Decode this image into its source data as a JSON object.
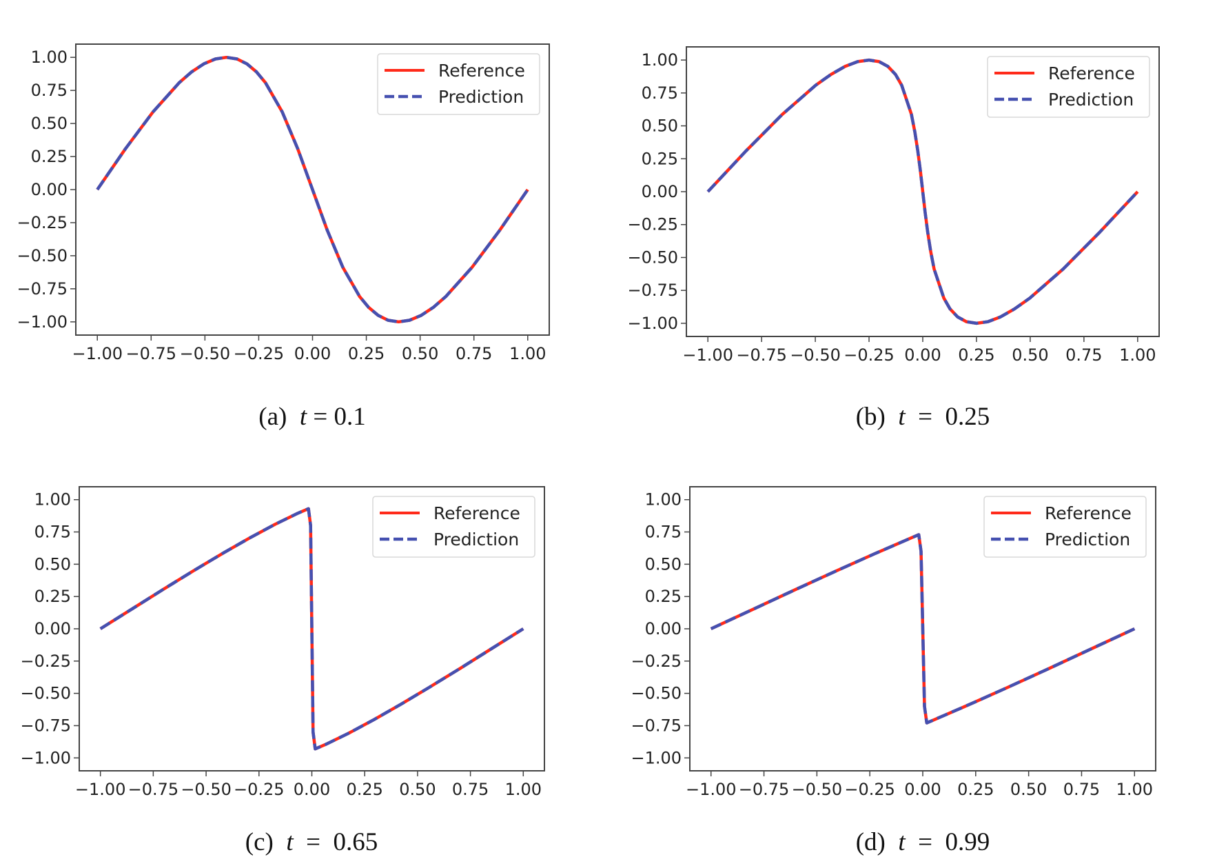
{
  "legend": {
    "reference_label": "Reference",
    "prediction_label": "Prediction",
    "position": "upper right"
  },
  "colors": {
    "reference": "#ff2a1a",
    "prediction": "#4550b0",
    "axes": "#444444"
  },
  "chart_data": [
    {
      "type": "line",
      "panel": "(a)",
      "caption_var": "t",
      "caption_value": "0.1",
      "xlim": [
        -1.1,
        1.1
      ],
      "ylim": [
        -1.1,
        1.1
      ],
      "grid": false,
      "legend": "top-right",
      "xticks": [
        "−1.00",
        "−0.75",
        "−0.50",
        "−0.25",
        "0.00",
        "0.25",
        "0.50",
        "0.75",
        "1.00"
      ],
      "yticks": [
        "−1.00",
        "−0.75",
        "−0.50",
        "−0.25",
        "0.00",
        "0.25",
        "0.50",
        "0.75",
        "1.00"
      ],
      "x": [
        -1,
        -0.869,
        -0.741,
        -0.619,
        -0.561,
        -0.505,
        -0.451,
        -0.4,
        -0.351,
        -0.305,
        -0.261,
        -0.219,
        -0.141,
        -0.069,
        0,
        0.069,
        0.141,
        0.219,
        0.261,
        0.305,
        0.351,
        0.4,
        0.451,
        0.505,
        0.561,
        0.619,
        0.741,
        0.869,
        1
      ],
      "series": [
        {
          "name": "Reference",
          "y": [
            0,
            0.309,
            0.588,
            0.809,
            0.891,
            0.951,
            0.988,
            1,
            0.988,
            0.951,
            0.891,
            0.809,
            0.588,
            0.309,
            0,
            -0.309,
            -0.588,
            -0.809,
            -0.891,
            -0.951,
            -0.988,
            -1,
            -0.988,
            -0.951,
            -0.891,
            -0.809,
            -0.588,
            -0.309,
            0
          ]
        },
        {
          "name": "Prediction",
          "y": [
            0,
            0.309,
            0.588,
            0.809,
            0.891,
            0.951,
            0.988,
            1,
            0.988,
            0.951,
            0.891,
            0.809,
            0.588,
            0.309,
            0,
            -0.309,
            -0.588,
            -0.809,
            -0.891,
            -0.951,
            -0.988,
            -1,
            -0.988,
            -0.951,
            -0.891,
            -0.809,
            -0.588,
            -0.309,
            0
          ]
        }
      ]
    },
    {
      "type": "line",
      "panel": "(b)",
      "caption_var": "t",
      "caption_value": "0.25",
      "xlim": [
        -1.1,
        1.1
      ],
      "ylim": [
        -1.1,
        1.1
      ],
      "grid": false,
      "legend": "top-right",
      "xticks": [
        "−1.00",
        "−0.75",
        "−0.50",
        "−0.25",
        "0.00",
        "0.25",
        "0.50",
        "0.75",
        "1.00"
      ],
      "yticks": [
        "−1.00",
        "−0.75",
        "−0.50",
        "−0.25",
        "0.00",
        "0.25",
        "0.50",
        "0.75",
        "1.00"
      ],
      "x": [
        -1,
        -0.823,
        -0.653,
        -0.498,
        -0.427,
        -0.362,
        -0.303,
        -0.25,
        -0.203,
        -0.162,
        -0.127,
        -0.098,
        -0.053,
        -0.037,
        -0.023,
        -0.011,
        0,
        0.011,
        0.023,
        0.037,
        0.053,
        0.098,
        0.127,
        0.162,
        0.203,
        0.25,
        0.303,
        0.362,
        0.427,
        0.498,
        0.653,
        0.823,
        1
      ],
      "series": [
        {
          "name": "Reference",
          "y": [
            0,
            0.309,
            0.588,
            0.809,
            0.891,
            0.951,
            0.988,
            1,
            0.988,
            0.951,
            0.891,
            0.809,
            0.588,
            0.454,
            0.309,
            0.156,
            0,
            -0.156,
            -0.309,
            -0.454,
            -0.588,
            -0.809,
            -0.891,
            -0.951,
            -0.988,
            -1,
            -0.988,
            -0.951,
            -0.891,
            -0.809,
            -0.588,
            -0.309,
            0
          ]
        },
        {
          "name": "Prediction",
          "y": [
            0,
            0.309,
            0.588,
            0.809,
            0.891,
            0.951,
            0.988,
            1,
            0.988,
            0.951,
            0.891,
            0.809,
            0.588,
            0.454,
            0.309,
            0.156,
            0,
            -0.156,
            -0.309,
            -0.454,
            -0.588,
            -0.809,
            -0.891,
            -0.951,
            -0.988,
            -1,
            -0.988,
            -0.951,
            -0.891,
            -0.809,
            -0.588,
            -0.309,
            0
          ]
        }
      ]
    },
    {
      "type": "line",
      "panel": "(c)",
      "caption_var": "t",
      "caption_value": "0.65",
      "xlim": [
        -1.1,
        1.1
      ],
      "ylim": [
        -1.1,
        1.1
      ],
      "grid": false,
      "legend": "top-right",
      "xticks": [
        "−1.00",
        "−0.75",
        "−0.50",
        "−0.25",
        "0.00",
        "0.25",
        "0.50",
        "0.75",
        "1.00"
      ],
      "yticks": [
        "−1.00",
        "−0.75",
        "−0.50",
        "−0.25",
        "0.00",
        "0.25",
        "0.50",
        "0.75",
        "1.00"
      ],
      "x": [
        -1,
        -0.848,
        -0.699,
        -0.555,
        -0.418,
        -0.29,
        -0.174,
        -0.071,
        -0.016,
        -0.006,
        0,
        0.006,
        0.016,
        0.071,
        0.174,
        0.29,
        0.418,
        0.555,
        0.699,
        0.848,
        1
      ],
      "series": [
        {
          "name": "Reference",
          "y": [
            0,
            0.156,
            0.309,
            0.454,
            0.588,
            0.707,
            0.809,
            0.891,
            0.93,
            0.8,
            0,
            -0.8,
            -0.93,
            -0.891,
            -0.809,
            -0.707,
            -0.588,
            -0.454,
            -0.309,
            -0.156,
            0
          ]
        },
        {
          "name": "Prediction",
          "y": [
            0,
            0.156,
            0.309,
            0.454,
            0.588,
            0.707,
            0.809,
            0.891,
            0.93,
            0.8,
            0,
            -0.8,
            -0.93,
            -0.891,
            -0.809,
            -0.707,
            -0.588,
            -0.454,
            -0.309,
            -0.156,
            0
          ]
        }
      ]
    },
    {
      "type": "line",
      "panel": "(d)",
      "caption_var": "t",
      "caption_value": "0.99",
      "xlim": [
        -1.1,
        1.1
      ],
      "ylim": [
        -1.1,
        1.1
      ],
      "grid": false,
      "legend": "top-right",
      "xticks": [
        "−1.00",
        "−0.75",
        "−0.50",
        "−0.25",
        "0.00",
        "0.25",
        "0.50",
        "0.75",
        "1.00"
      ],
      "yticks": [
        "−1.00",
        "−0.75",
        "−0.50",
        "−0.25",
        "0.00",
        "0.25",
        "0.50",
        "0.75",
        "1.00"
      ],
      "x": [
        -1,
        -0.795,
        -0.594,
        -0.401,
        -0.218,
        -0.05,
        -0.019,
        -0.008,
        0,
        0.008,
        0.019,
        0.05,
        0.218,
        0.401,
        0.594,
        0.795,
        1
      ],
      "series": [
        {
          "name": "Reference",
          "y": [
            0,
            0.156,
            0.309,
            0.454,
            0.588,
            0.707,
            0.729,
            0.6,
            0,
            -0.6,
            -0.729,
            -0.707,
            -0.588,
            -0.454,
            -0.309,
            -0.156,
            0
          ]
        },
        {
          "name": "Prediction",
          "y": [
            0,
            0.156,
            0.309,
            0.454,
            0.588,
            0.707,
            0.729,
            0.6,
            0,
            -0.6,
            -0.729,
            -0.707,
            -0.588,
            -0.454,
            -0.309,
            -0.156,
            0
          ]
        }
      ]
    }
  ]
}
